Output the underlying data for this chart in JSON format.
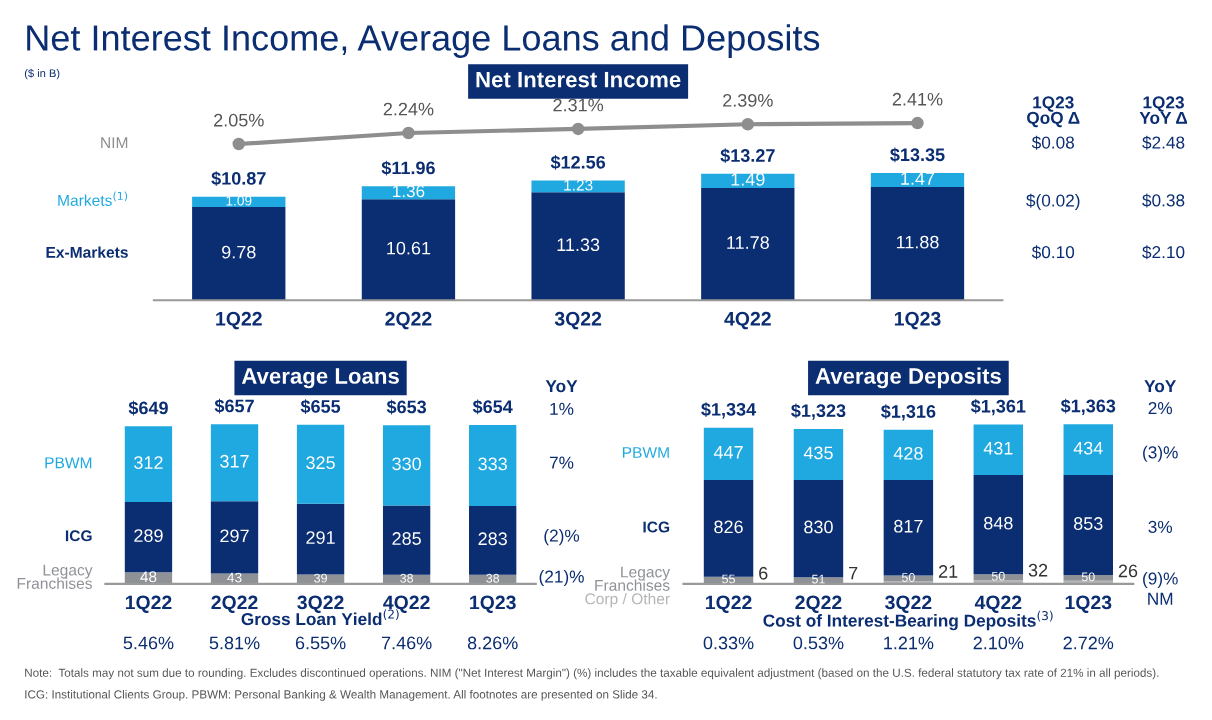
{
  "chart_data": [
    {
      "type": "other",
      "title": "Net Interest Income, Average Loans and Deposits",
      "subtitle": "($ in B)",
      "annotations": [
        "Note:  Totals may not sum due to rounding. Excludes discontinued operations. NIM (\"Net Interest Margin\") (%) includes the taxable equivalent adjustment (based on the U.S. federal statutory tax rate of 21% in all periods).",
        "ICG: Institutional Clients Group. PBWM: Personal Banking & Wealth Management. All footnotes are presented on Slide 34."
      ]
    },
    {
      "type": "line",
      "title": "Net Interest Income",
      "legend": "left",
      "categories": [
        null,
        null,
        null,
        null,
        null
      ],
      "series": [
        {
          "name": "NIM",
          "marker": "circle",
          "color": "#8e8e8e",
          "values": [
            2.05,
            2.24,
            2.31,
            2.39,
            2.41
          ],
          "value_labels": [
            "2.05%",
            "2.24%",
            "2.31%",
            "2.39%",
            "2.41%"
          ]
        }
      ],
      "annotations": [
        "1Q23\nQoQ Δ",
        "1Q23\nYoY Δ",
        "$0.08",
        "$2.48"
      ]
    },
    {
      "type": "bar",
      "stacked": true,
      "data_labels": true,
      "legend": "left",
      "categories": [
        "1Q22",
        "2Q22",
        "3Q22",
        "4Q22",
        "1Q23"
      ],
      "series": [
        {
          "name": "Ex-Markets",
          "color": "#0b2d71",
          "values": [
            9.78,
            10.61,
            11.33,
            11.78,
            11.88
          ]
        },
        {
          "name": "Markets$^{(1)}$",
          "color": "#1fa9e0",
          "values": [
            1.09,
            1.36,
            1.23,
            1.49,
            1.47
          ]
        }
      ],
      "totals": [
        "$10.87",
        "$11.96",
        "$12.56",
        "$13.27",
        "$13.35"
      ],
      "annotations": [
        "$(0.02)",
        "$0.38",
        "$0.10",
        "$2.10"
      ]
    },
    {
      "type": "bar",
      "title": "Average Loans",
      "stacked": true,
      "data_labels": true,
      "legend": "left",
      "categories": [
        "1Q22",
        "2Q22",
        "3Q22",
        "4Q22",
        "1Q23"
      ],
      "series": [
        {
          "name": "Legacy\nFranchises",
          "color": "#8e9196",
          "values": [
            48,
            43,
            39,
            38,
            38
          ]
        },
        {
          "name": "ICG",
          "color": "#0b2d71",
          "values": [
            289,
            297,
            291,
            285,
            283
          ]
        },
        {
          "name": "PBWM",
          "color": "#1fa9e0",
          "values": [
            312,
            317,
            325,
            330,
            333
          ]
        }
      ],
      "totals": [
        "$649",
        "$657",
        "$655",
        "$653",
        "$654"
      ],
      "annotations": [
        "YoY",
        "1%",
        "7%",
        "(2)%",
        "(21)%",
        "Gross Loan Yield$^{(2)}$",
        "5.46%",
        "5.81%",
        "6.55%",
        "7.46%",
        "8.26%"
      ]
    },
    {
      "type": "bar",
      "title": "Average Deposits",
      "stacked": true,
      "data_labels": true,
      "legend": "left",
      "categories": [
        "1Q22",
        "2Q22",
        "3Q22",
        "4Q22",
        "1Q23"
      ],
      "series": [
        {
          "name": "Corp / Other",
          "color": "#b5b5b5",
          "values": [
            6,
            7,
            21,
            32,
            26
          ]
        },
        {
          "name": "Legacy\nFranchises",
          "color": "#8e9196",
          "values": [
            55,
            51,
            50,
            50,
            50
          ]
        },
        {
          "name": "ICG",
          "color": "#0b2d71",
          "values": [
            826,
            830,
            817,
            848,
            853
          ]
        },
        {
          "name": "PBWM",
          "color": "#1fa9e0",
          "values": [
            447,
            435,
            428,
            431,
            434
          ]
        }
      ],
      "totals": [
        "$1,334",
        "$1,323",
        "$1,316",
        "$1,361",
        "$1,363"
      ],
      "annotations": [
        "YoY",
        "2%",
        "(3)%",
        "3%",
        "(9)%",
        "NM",
        "Cost of Interest-Bearing Deposits$^{(3)}$",
        "0.33%",
        "0.53%",
        "1.21%",
        "2.10%",
        "2.72%"
      ]
    }
  ]
}
